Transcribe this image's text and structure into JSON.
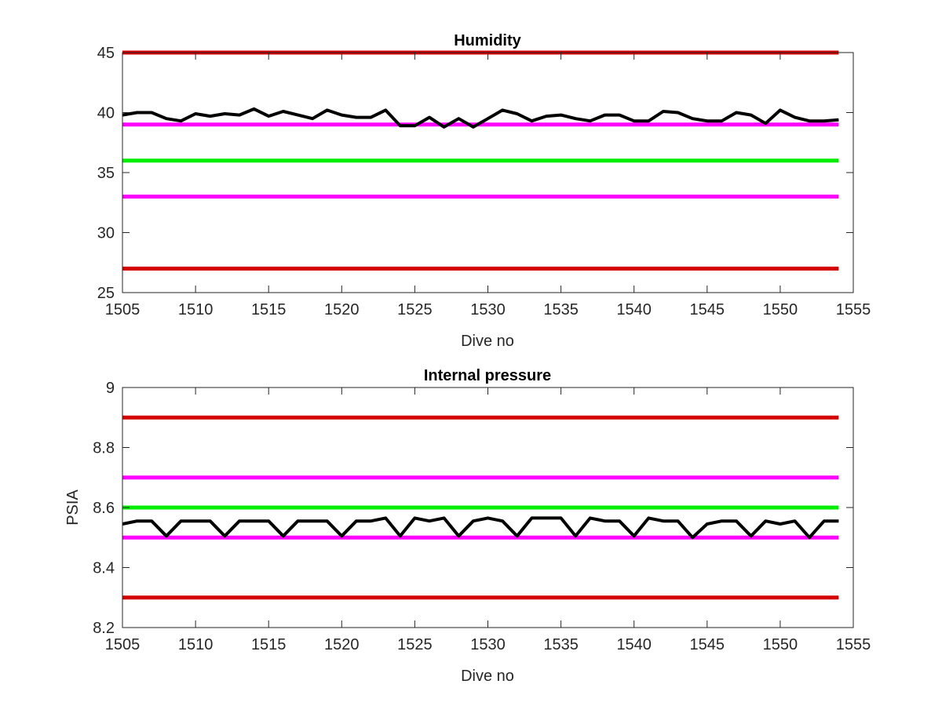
{
  "chart_data": [
    {
      "type": "line",
      "title": "Humidity",
      "xlabel": "Dive no",
      "ylabel": "",
      "xlim": [
        1505,
        1555
      ],
      "ylim": [
        25,
        45
      ],
      "xticks": [
        1505,
        1510,
        1515,
        1520,
        1525,
        1530,
        1535,
        1540,
        1545,
        1550,
        1555
      ],
      "yticks": [
        25,
        30,
        35,
        40,
        45
      ],
      "ytick_labels": [
        "25",
        "30",
        "35",
        "40",
        "45"
      ],
      "grid": false,
      "colors": {
        "data": "#000000",
        "limit_red": "#d40000",
        "limit_magenta": "#ff00ff",
        "nominal_green": "#00ee00"
      },
      "reference_lines": [
        {
          "y": 45,
          "color": "#d40000"
        },
        {
          "y": 39,
          "color": "#ff00ff"
        },
        {
          "y": 36,
          "color": "#00ee00"
        },
        {
          "y": 33,
          "color": "#ff00ff"
        },
        {
          "y": 27,
          "color": "#d40000"
        }
      ],
      "reference_xrange": [
        1505,
        1554
      ],
      "series": [
        {
          "color": "#000000",
          "x": [
            1505,
            1506,
            1507,
            1508,
            1509,
            1510,
            1511,
            1512,
            1513,
            1514,
            1515,
            1516,
            1517,
            1518,
            1519,
            1520,
            1521,
            1522,
            1523,
            1524,
            1525,
            1526,
            1527,
            1528,
            1529,
            1530,
            1531,
            1532,
            1533,
            1534,
            1535,
            1536,
            1537,
            1538,
            1539,
            1540,
            1541,
            1542,
            1543,
            1544,
            1545,
            1546,
            1547,
            1548,
            1549,
            1550,
            1551,
            1552,
            1553,
            1554
          ],
          "y": [
            39.8,
            40.0,
            40.0,
            39.5,
            39.3,
            39.9,
            39.7,
            39.9,
            39.8,
            40.3,
            39.7,
            40.1,
            39.8,
            39.5,
            40.2,
            39.8,
            39.6,
            39.6,
            40.2,
            38.9,
            38.9,
            39.6,
            38.8,
            39.5,
            38.8,
            39.5,
            40.2,
            39.9,
            39.3,
            39.7,
            39.8,
            39.5,
            39.3,
            39.8,
            39.8,
            39.3,
            39.3,
            40.1,
            40.0,
            39.5,
            39.3,
            39.3,
            40.0,
            39.8,
            39.1,
            40.2,
            39.6,
            39.3,
            39.3,
            39.4
          ]
        }
      ]
    },
    {
      "type": "line",
      "title": "Internal pressure",
      "xlabel": "Dive no",
      "ylabel": "PSIA",
      "xlim": [
        1505,
        1555
      ],
      "ylim": [
        8.2,
        9.0
      ],
      "xticks": [
        1505,
        1510,
        1515,
        1520,
        1525,
        1530,
        1535,
        1540,
        1545,
        1550,
        1555
      ],
      "yticks": [
        8.2,
        8.4,
        8.6,
        8.8,
        9.0
      ],
      "ytick_labels": [
        "8.2",
        "8.4",
        "8.6",
        "8.8",
        "9"
      ],
      "grid": false,
      "colors": {
        "data": "#000000",
        "limit_red": "#d40000",
        "limit_magenta": "#ff00ff",
        "nominal_green": "#00ee00"
      },
      "reference_lines": [
        {
          "y": 8.9,
          "color": "#d40000"
        },
        {
          "y": 8.7,
          "color": "#ff00ff"
        },
        {
          "y": 8.6,
          "color": "#00ee00"
        },
        {
          "y": 8.5,
          "color": "#ff00ff"
        },
        {
          "y": 8.3,
          "color": "#d40000"
        }
      ],
      "reference_xrange": [
        1505,
        1554
      ],
      "series": [
        {
          "color": "#000000",
          "x": [
            1505,
            1506,
            1507,
            1508,
            1509,
            1510,
            1511,
            1512,
            1513,
            1514,
            1515,
            1516,
            1517,
            1518,
            1519,
            1520,
            1521,
            1522,
            1523,
            1524,
            1525,
            1526,
            1527,
            1528,
            1529,
            1530,
            1531,
            1532,
            1533,
            1534,
            1535,
            1536,
            1537,
            1538,
            1539,
            1540,
            1541,
            1542,
            1543,
            1544,
            1545,
            1546,
            1547,
            1548,
            1549,
            1550,
            1551,
            1552,
            1553,
            1554
          ],
          "y": [
            8.545,
            8.555,
            8.555,
            8.505,
            8.555,
            8.555,
            8.555,
            8.505,
            8.555,
            8.555,
            8.555,
            8.505,
            8.555,
            8.555,
            8.555,
            8.505,
            8.555,
            8.555,
            8.565,
            8.505,
            8.565,
            8.555,
            8.565,
            8.505,
            8.555,
            8.565,
            8.555,
            8.505,
            8.565,
            8.565,
            8.565,
            8.505,
            8.565,
            8.555,
            8.555,
            8.505,
            8.565,
            8.555,
            8.555,
            8.5,
            8.545,
            8.555,
            8.555,
            8.505,
            8.555,
            8.545,
            8.555,
            8.5,
            8.555,
            8.555
          ]
        }
      ]
    }
  ]
}
